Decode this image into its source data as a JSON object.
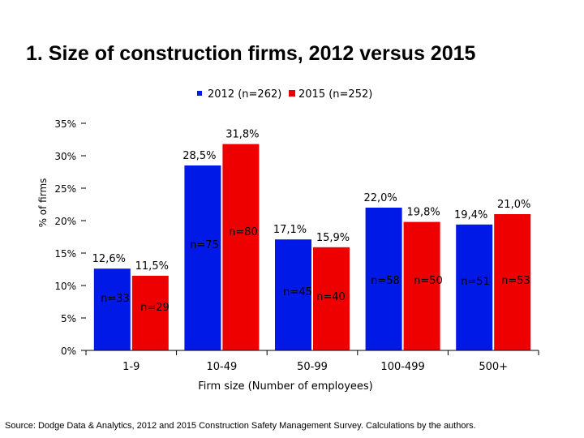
{
  "title": "1. Size of construction firms, 2012 versus 2015",
  "source": "Source:  Dodge Data & Analytics, 2012 and 2015 Construction Safety Management Survey.  Calculations by the authors.",
  "colors": {
    "s2012": "#0019e6",
    "s2015": "#ee0000"
  },
  "chart_data": {
    "type": "bar",
    "title": "1. Size of construction firms, 2012 versus 2015",
    "xlabel": "Firm size (Number of employees)",
    "ylabel": "% of firms",
    "ylim": [
      0,
      35
    ],
    "yticks": [
      "0%",
      "5%",
      "10%",
      "15%",
      "20%",
      "25%",
      "30%",
      "35%"
    ],
    "ytick_values": [
      0,
      5,
      10,
      15,
      20,
      25,
      30,
      35
    ],
    "legend": "top-center",
    "categories": [
      "1-9",
      "10-49",
      "50-99",
      "100-499",
      "500+"
    ],
    "series": [
      {
        "name": "2012 (n=262)",
        "values": [
          12.6,
          28.5,
          17.1,
          22.0,
          19.4
        ],
        "labels": [
          "12,6%",
          "28,5%",
          "17,1%",
          "22,0%",
          "19,4%"
        ],
        "n": [
          "n=33",
          "n=75",
          "n=45",
          "n=58",
          "n=51"
        ]
      },
      {
        "name": "2015 (n=252)",
        "values": [
          11.5,
          31.8,
          15.9,
          19.8,
          21.0
        ],
        "labels": [
          "11,5%",
          "31,8%",
          "15,9%",
          "19,8%",
          "21,0%"
        ],
        "n": [
          "n=29",
          "n=80",
          "n=40",
          "n=50",
          "n=53"
        ]
      }
    ]
  }
}
